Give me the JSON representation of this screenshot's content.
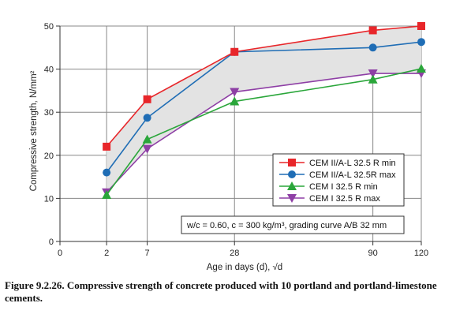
{
  "chart_data": {
    "type": "line",
    "title": "",
    "ylabel": "Compressive strength, N/mm²",
    "xlabel": "Age in days (d), √d",
    "ylim": [
      0,
      50
    ],
    "y_ticks": [
      0,
      10,
      20,
      30,
      40,
      50
    ],
    "x_scale": "sqrt",
    "x_ticks": [
      0,
      2,
      7,
      28,
      90,
      120
    ],
    "x": [
      2,
      7,
      28,
      90,
      120
    ],
    "grid": "vertical and horizontal lines at ticks",
    "shaded_band": "between CEM II/A-L 32.5 R min and CEM I 32.5 R max",
    "legend_position": "bottom-right",
    "series": [
      {
        "name": "CEM II/A-L 32.5 R min",
        "values": [
          22,
          33,
          44,
          49,
          50
        ],
        "color": "#e8262a",
        "marker": "square"
      },
      {
        "name": "CEM II/A-L 32.5R max",
        "values": [
          16,
          28.7,
          44,
          45,
          46.3
        ],
        "color": "#1f6db5",
        "marker": "circle"
      },
      {
        "name": "CEM I 32.5 R min",
        "values": [
          10.8,
          23.7,
          32.5,
          37.6,
          40.1
        ],
        "color": "#2aa63a",
        "marker": "triangle-up"
      },
      {
        "name": "CEM I 32.5 R max",
        "values": [
          11.4,
          21.5,
          34.7,
          39,
          39
        ],
        "color": "#8e3fa5",
        "marker": "triangle-down"
      }
    ],
    "annotation": "w/c = 0.60, c = 300 kg/m³, grading curve A/B 32 mm"
  },
  "caption": "Figure 9.2.26. Compressive strength of concrete produced with 10 portland and portland-limestone cements.",
  "colors": {
    "band": "#e3e3e3",
    "grid": "#888888",
    "axis": "#333333"
  }
}
